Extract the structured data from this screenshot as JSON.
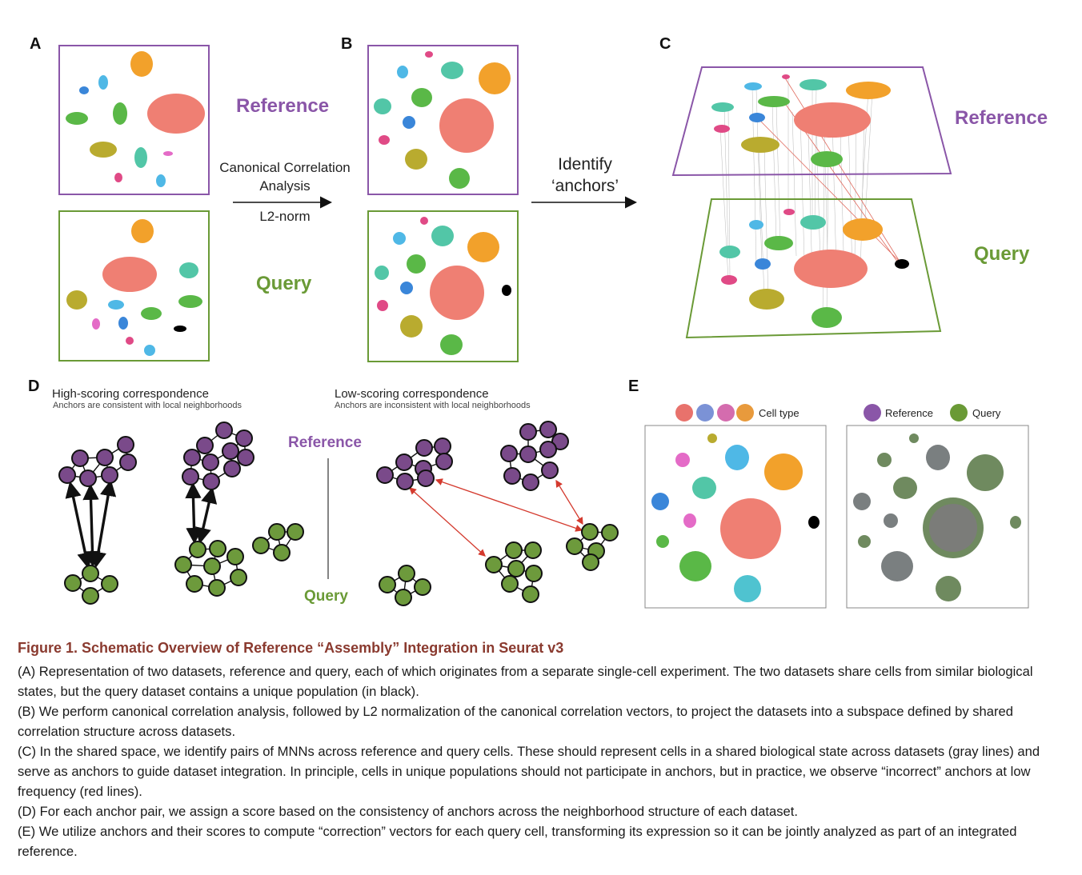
{
  "panels": {
    "a": {
      "letter": "A"
    },
    "b": {
      "letter": "B"
    },
    "c": {
      "letter": "C"
    },
    "d": {
      "letter": "D"
    },
    "e": {
      "letter": "E"
    }
  },
  "labels": {
    "reference": "Reference",
    "query": "Query"
  },
  "step1": {
    "line1": "Canonical Correlation",
    "line2": "Analysis",
    "line3": "L2-norm"
  },
  "step2": {
    "line1": "Identify",
    "line2": "‘anchors’"
  },
  "panel_d": {
    "high_title": "High-scoring correspondence",
    "high_sub": "Anchors are consistent with local neighborhoods",
    "low_title": "Low-scoring correspondence",
    "low_sub": "Anchors are inconsistent with local neighborhoods"
  },
  "panel_e": {
    "legend_celltype": "Cell type",
    "legend_reference": "Reference",
    "legend_query": "Query"
  },
  "colors": {
    "reference_frame": "#8a56a8",
    "query_frame": "#6a9a36",
    "ref_node": "#7a4a8a",
    "query_node": "#6d9a3c",
    "red_arrow": "#d43a2e",
    "caption_title": "#8a3a2f",
    "salmon": "#ef7f73",
    "orange": "#f2a12b",
    "lightblue": "#4fb8e6",
    "blue": "#3a86d9",
    "teal": "#52c6a7",
    "green": "#5ab847",
    "olive": "#b9ab2f",
    "pink": "#e46bc7",
    "magenta": "#e04a86",
    "unique": "#000000"
  },
  "caption": {
    "title": "Figure 1.  Schematic Overview of Reference “Assembly” Integration in Seurat v3",
    "a": "(A) Representation of two datasets, reference and query, each of which originates from a separate single-cell experiment. The two datasets share cells from similar biological states, but the query dataset contains a unique population (in black).",
    "b": "(B) We perform canonical correlation analysis, followed by L2 normalization of the canonical correlation vectors, to project the datasets into a subspace defined by shared correlation structure across datasets.",
    "c": "(C) In the shared space, we identify pairs of MNNs across reference and query cells. These should represent cells in a shared biological state across datasets (gray lines) and serve as anchors to guide dataset integration. In principle, cells in unique populations should not participate in anchors, but in practice, we observe “incorrect” anchors at low frequency (red lines).",
    "d": "(D) For each anchor pair, we assign a score based on the consistency of anchors across the neighborhood structure of each dataset.",
    "e": "(E) We utilize anchors and their scores to compute “correction” vectors for each query cell, transforming its expression so it can be jointly analyzed as part of an integrated reference."
  }
}
